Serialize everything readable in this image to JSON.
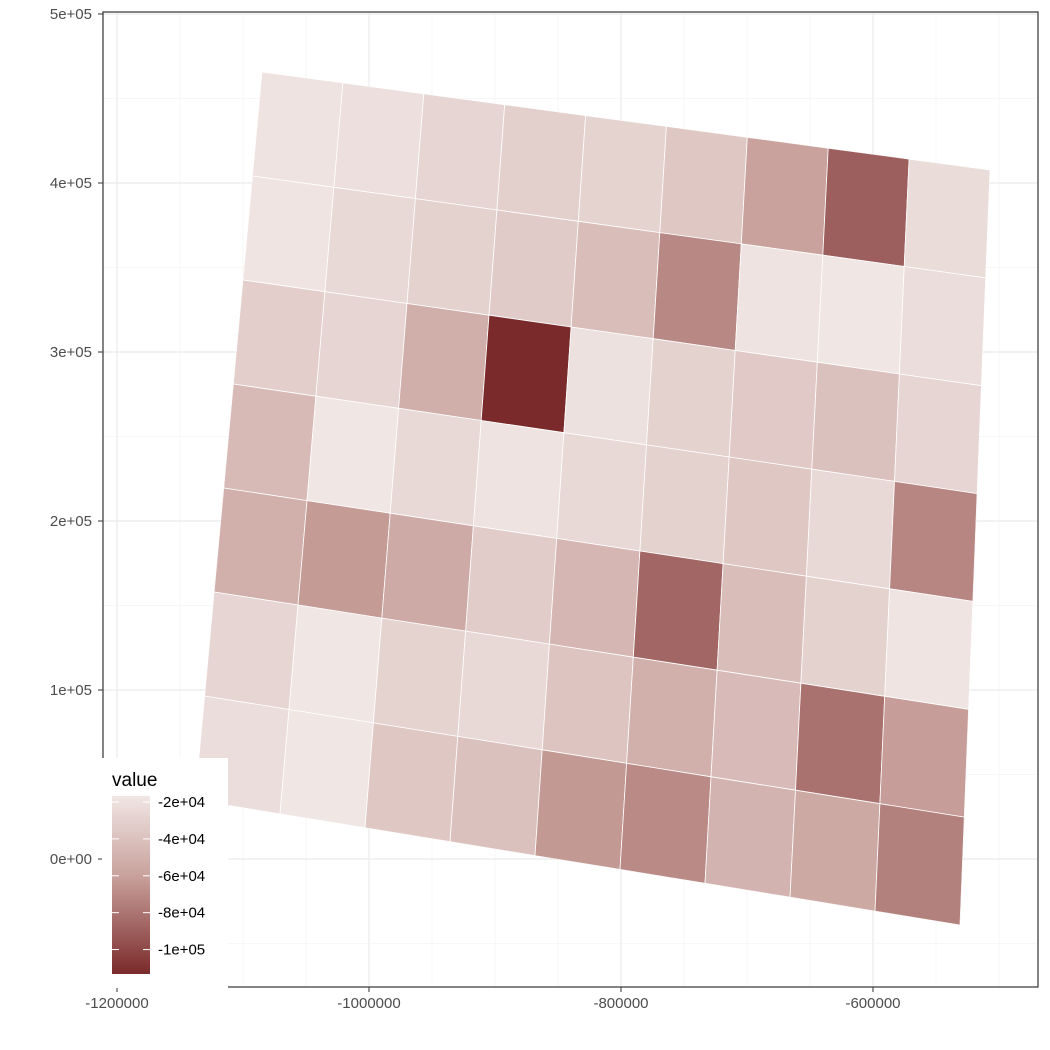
{
  "chart_data": {
    "type": "choropleth",
    "x_ticks": [
      "-1200000",
      "-1000000",
      "-800000",
      "-600000"
    ],
    "y_ticks": [
      "5e+05",
      "4e+05",
      "3e+05",
      "2e+05",
      "1e+05",
      "0e+00"
    ],
    "xlim": [
      -1200000,
      -500000
    ],
    "ylim": [
      -75000,
      500000
    ],
    "grid": true,
    "legend": {
      "title": "value",
      "position": "bottom-left",
      "labels": [
        "-2e+04",
        "-4e+04",
        "-6e+04",
        "-8e+04",
        "-1e+05"
      ],
      "low_color": "#7a2a2a",
      "high_color": "#f0e6e4"
    },
    "colors": {
      "panel_border": "#333333",
      "grid_major": "#ebebeb",
      "grid_minor": "#f4f4f4"
    },
    "regions_value": [
      -22000,
      -24000,
      -30000,
      -33000,
      -31000,
      -38000,
      -60000,
      -88000,
      -26000,
      -21000,
      -28000,
      -32000,
      -36000,
      -44000,
      -71000,
      -22000,
      -17000,
      -25000,
      -34000,
      -30000,
      -53000,
      -110000,
      -23000,
      -32000,
      -37000,
      -42000,
      -30000,
      -46000,
      -20000,
      -28000,
      -22000,
      -28000,
      -32000,
      -38000,
      -28000,
      -72000,
      -52000,
      -63000,
      -55000,
      -35000,
      -48000,
      -85000,
      -44000,
      -32000,
      -21000,
      -30000,
      -18000,
      -31000,
      -28000,
      -40000,
      -52000,
      -45000,
      -80000,
      -62000,
      -25000,
      -20000,
      -38000,
      -42000,
      -64000,
      -70000,
      -50000,
      -56000,
      -74000
    ]
  }
}
